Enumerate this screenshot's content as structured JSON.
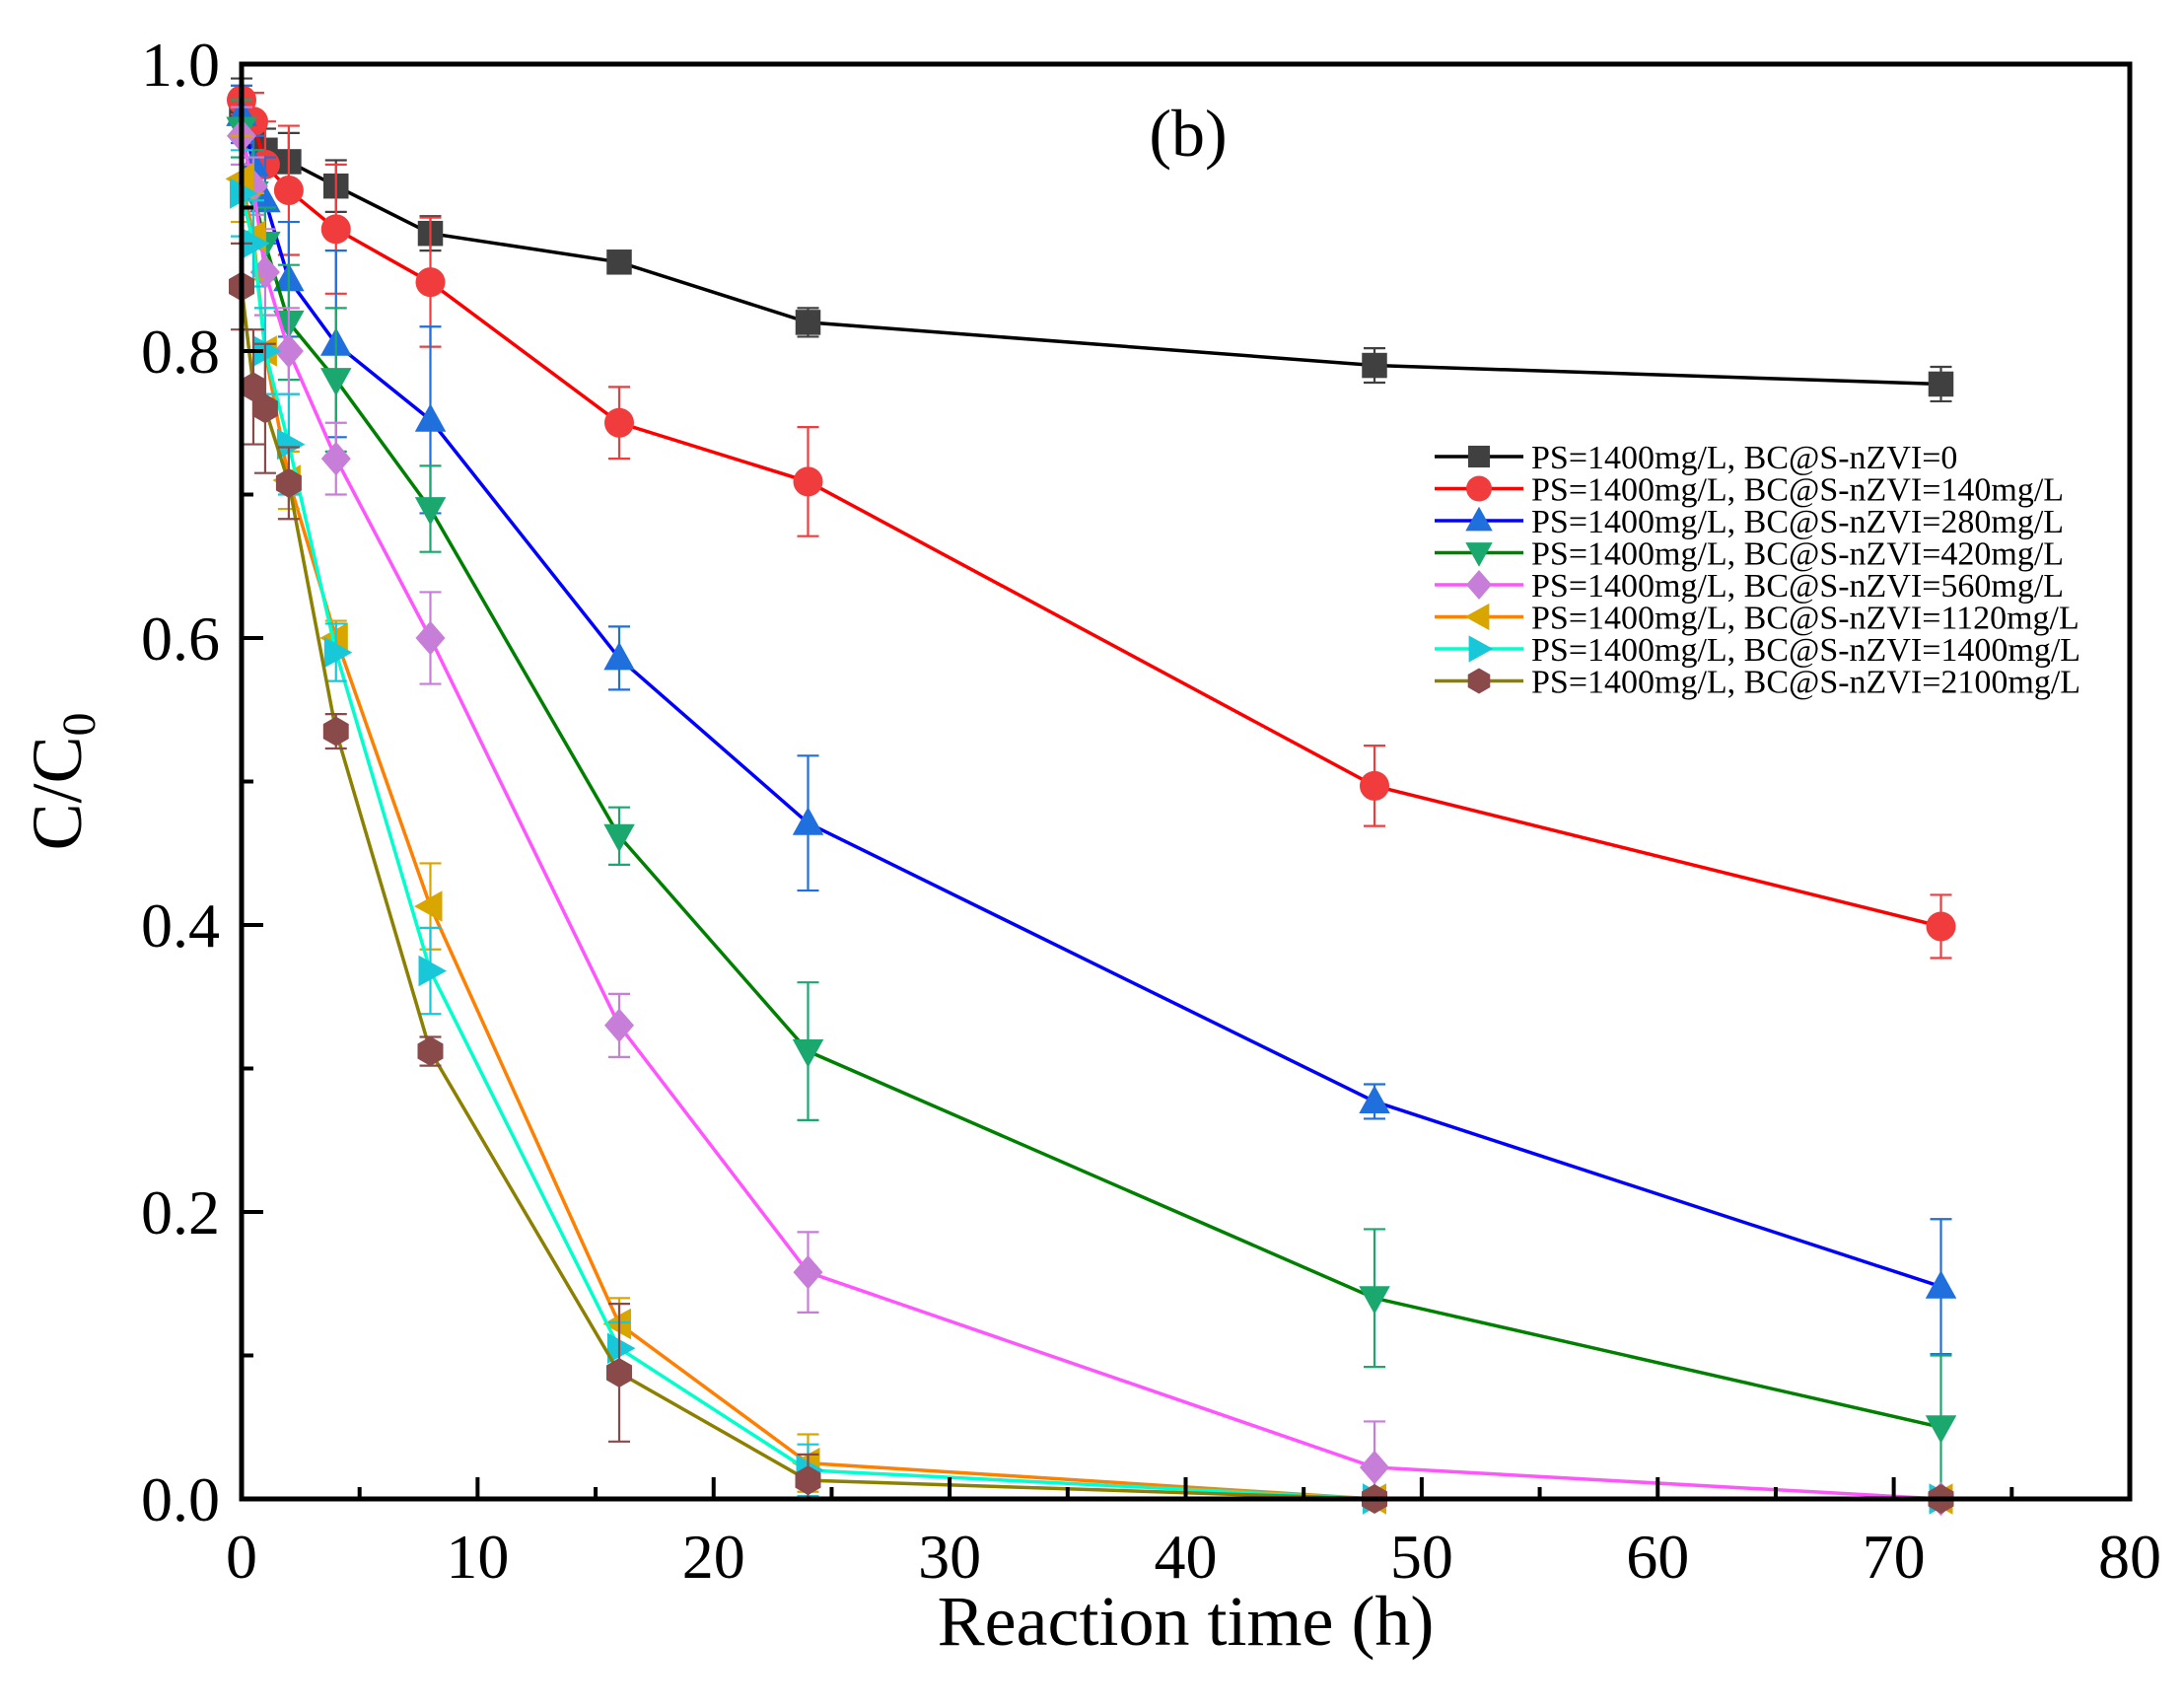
{
  "chart_data": {
    "type": "line",
    "panel_label": "(b)",
    "xlabel": "Reaction time (h)",
    "ylabel_main": "C/C",
    "ylabel_sub": "0",
    "xlim": [
      0,
      80
    ],
    "ylim": [
      0,
      1.0
    ],
    "xticks": [
      0,
      10,
      20,
      30,
      40,
      50,
      60,
      70,
      80
    ],
    "xtick_labels": [
      "0",
      "10",
      "20",
      "30",
      "40",
      "50",
      "60",
      "70",
      "80"
    ],
    "yticks": [
      0,
      0.2,
      0.4,
      0.6,
      0.8,
      1.0
    ],
    "ytick_labels": [
      "0.0",
      "0.2",
      "0.4",
      "0.6",
      "0.8",
      "1.0"
    ],
    "grid": false,
    "legend_position": "right",
    "series": [
      {
        "name": "PS=1400mg/L, BC@S-nZVI=0",
        "color": "#000000",
        "marker_color": "#404040",
        "marker": "square",
        "x": [
          0,
          0.5,
          1,
          2,
          4,
          8,
          16,
          24,
          48,
          72
        ],
        "y": [
          0.97,
          0.95,
          0.94,
          0.932,
          0.915,
          0.882,
          0.862,
          0.82,
          0.79,
          0.777
        ],
        "err": [
          0.02,
          0.015,
          0.015,
          0.02,
          0.018,
          0.012,
          0.005,
          0.01,
          0.012,
          0.012
        ]
      },
      {
        "name": "PS=1400mg/L, BC@S-nZVI=140mg/L",
        "color": "#ff0000",
        "marker_color": "#f03c3c",
        "marker": "circle",
        "x": [
          0,
          0.5,
          1,
          2,
          4,
          8,
          16,
          24,
          48,
          72
        ],
        "y": [
          0.975,
          0.96,
          0.93,
          0.912,
          0.885,
          0.848,
          0.75,
          0.709,
          0.497,
          0.399
        ],
        "err": [
          0.01,
          0.02,
          0.03,
          0.045,
          0.045,
          0.045,
          0.025,
          0.038,
          0.028,
          0.022
        ]
      },
      {
        "name": "PS=1400mg/L, BC@S-nZVI=280mg/L",
        "color": "#0000ff",
        "marker_color": "#1f6fdc",
        "marker": "triangle-up",
        "x": [
          0,
          0.5,
          1,
          2,
          4,
          8,
          16,
          24,
          48,
          72
        ],
        "y": [
          0.965,
          0.93,
          0.905,
          0.85,
          0.805,
          0.752,
          0.586,
          0.471,
          0.277,
          0.148
        ],
        "err": [
          0.02,
          0.02,
          0.03,
          0.04,
          0.065,
          0.065,
          0.022,
          0.047,
          0.012,
          0.047
        ]
      },
      {
        "name": "PS=1400mg/L, BC@S-nZVI=420mg/L",
        "color": "#008000",
        "marker_color": "#1aa86e",
        "marker": "triangle-down",
        "x": [
          0,
          0.5,
          1,
          2,
          4,
          8,
          16,
          24,
          48,
          72
        ],
        "y": [
          0.955,
          0.91,
          0.875,
          0.82,
          0.78,
          0.69,
          0.462,
          0.312,
          0.14,
          0.05
        ],
        "err": [
          0.02,
          0.03,
          0.025,
          0.04,
          0.05,
          0.03,
          0.02,
          0.048,
          0.048,
          0.05
        ]
      },
      {
        "name": "PS=1400mg/L, BC@S-nZVI=560mg/L",
        "color": "#ff55ff",
        "marker_color": "#c77ed8",
        "marker": "diamond",
        "x": [
          0,
          0.5,
          1,
          2,
          4,
          8,
          16,
          24,
          48,
          72
        ],
        "y": [
          0.95,
          0.915,
          0.855,
          0.8,
          0.725,
          0.6,
          0.33,
          0.158,
          0.022,
          0.0
        ],
        "err": [
          0.02,
          0.02,
          0.03,
          0.03,
          0.025,
          0.032,
          0.022,
          0.028,
          0.032,
          0.005
        ]
      },
      {
        "name": "PS=1400mg/L, BC@S-nZVI=1120mg/L",
        "color": "#ff7f00",
        "marker_color": "#d9a600",
        "marker": "triangle-left",
        "x": [
          0,
          0.5,
          1,
          2,
          4,
          8,
          16,
          24,
          48,
          72
        ],
        "y": [
          0.92,
          0.88,
          0.8,
          0.71,
          0.6,
          0.413,
          0.122,
          0.025,
          0.0,
          0.0
        ],
        "err": [
          0.03,
          0.03,
          0.03,
          0.02,
          0.012,
          0.03,
          0.018,
          0.02,
          0.005,
          0.005
        ]
      },
      {
        "name": "PS=1400mg/L, BC@S-nZVI=1400mg/L",
        "color": "#00ffcc",
        "marker_color": "#19c8d8",
        "marker": "triangle-right",
        "x": [
          0,
          0.5,
          1,
          2,
          4,
          8,
          16,
          24,
          48,
          72
        ],
        "y": [
          0.91,
          0.875,
          0.8,
          0.735,
          0.59,
          0.368,
          0.105,
          0.02,
          0.0,
          0.0
        ],
        "err": [
          0.03,
          0.03,
          0.03,
          0.035,
          0.02,
          0.03,
          0.018,
          0.018,
          0.005,
          0.005
        ]
      },
      {
        "name": "PS=1400mg/L, BC@S-nZVI=2100mg/L",
        "color": "#8b8000",
        "marker_color": "#8a4a4a",
        "marker": "hexagon",
        "x": [
          0,
          0.5,
          1,
          2,
          4,
          8,
          16,
          24,
          48,
          72
        ],
        "y": [
          0.845,
          0.775,
          0.76,
          0.708,
          0.535,
          0.312,
          0.088,
          0.013,
          0.0,
          0.0
        ],
        "err": [
          0.03,
          0.04,
          0.045,
          0.025,
          0.012,
          0.01,
          0.048,
          0.018,
          0.005,
          0.005
        ]
      }
    ]
  }
}
